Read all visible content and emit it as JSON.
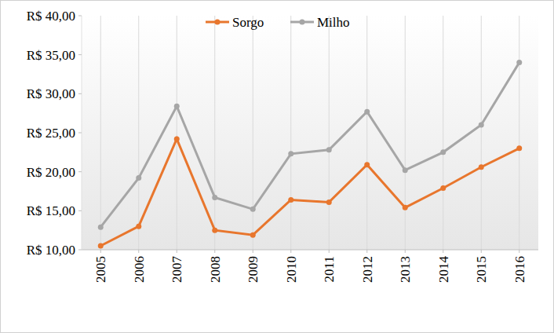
{
  "chart_data": {
    "type": "line",
    "categories": [
      "2005",
      "2006",
      "2007",
      "2008",
      "2009",
      "2010",
      "2011",
      "2012",
      "2013",
      "2014",
      "2015",
      "2016"
    ],
    "series": [
      {
        "name": "Sorgo",
        "color": "#e8762d",
        "marker": "circle",
        "values": [
          10.5,
          13.0,
          24.2,
          12.5,
          11.9,
          16.4,
          16.1,
          20.9,
          15.4,
          17.9,
          20.6,
          23.0
        ]
      },
      {
        "name": "Milho",
        "color": "#a6a6a6",
        "marker": "circle",
        "values": [
          12.9,
          19.2,
          28.4,
          16.7,
          15.2,
          22.3,
          22.8,
          27.7,
          20.2,
          22.5,
          26.0,
          34.0
        ]
      }
    ],
    "ylim": [
      10,
      40
    ],
    "yticks": [
      {
        "value": 10,
        "label": "R$ 10,00"
      },
      {
        "value": 15,
        "label": "R$ 15,00"
      },
      {
        "value": 20,
        "label": "R$ 20,00"
      },
      {
        "value": 25,
        "label": "R$ 25,00"
      },
      {
        "value": 30,
        "label": "R$ 30,00"
      },
      {
        "value": 35,
        "label": "R$ 35,00"
      },
      {
        "value": 40,
        "label": "R$ 40,00"
      }
    ],
    "grid": true,
    "legend": "top"
  }
}
